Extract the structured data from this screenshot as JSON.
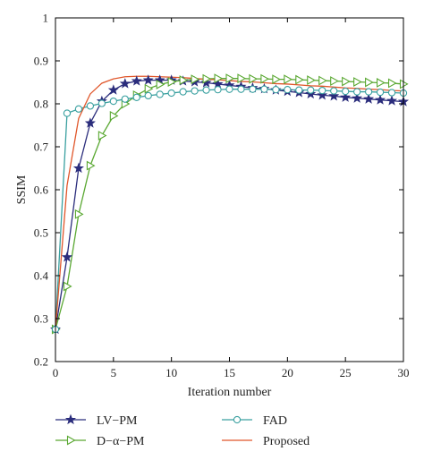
{
  "chart_data": {
    "type": "line",
    "title": "",
    "xlabel": "Iteration number",
    "ylabel": "SSIM",
    "xlim": [
      0,
      30
    ],
    "ylim": [
      0.2,
      1
    ],
    "xticks": [
      0,
      5,
      10,
      15,
      20,
      25,
      30
    ],
    "yticks": [
      0.2,
      0.3,
      0.4,
      0.5,
      0.6,
      0.7,
      0.8,
      0.9,
      1
    ],
    "xtick_labels": [
      "0",
      "5",
      "10",
      "15",
      "20",
      "25",
      "30"
    ],
    "ytick_labels": [
      "0.2",
      "0.3",
      "0.4",
      "0.5",
      "0.6",
      "0.7",
      "0.8",
      "0.9",
      "1"
    ],
    "grid": false,
    "legend_position": "below plot, two columns",
    "x": [
      0,
      1,
      2,
      3,
      4,
      5,
      6,
      7,
      8,
      9,
      10,
      11,
      12,
      13,
      14,
      15,
      16,
      17,
      18,
      19,
      20,
      21,
      22,
      23,
      24,
      25,
      26,
      27,
      28,
      29,
      30
    ],
    "series": [
      {
        "name": "LV−PM",
        "color": "#2b2d7c",
        "marker": "star",
        "values": [
          0.275,
          0.443,
          0.65,
          0.755,
          0.806,
          0.832,
          0.847,
          0.853,
          0.855,
          0.855,
          0.855,
          0.853,
          0.851,
          0.849,
          0.846,
          0.843,
          0.84,
          0.837,
          0.835,
          0.832,
          0.829,
          0.826,
          0.823,
          0.82,
          0.818,
          0.815,
          0.813,
          0.811,
          0.809,
          0.807,
          0.805
        ]
      },
      {
        "name": "D−α−PM",
        "color": "#5aa832",
        "marker": "triangle-right",
        "values": [
          0.275,
          0.375,
          0.543,
          0.656,
          0.726,
          0.772,
          0.8,
          0.82,
          0.835,
          0.845,
          0.851,
          0.855,
          0.857,
          0.858,
          0.859,
          0.859,
          0.859,
          0.858,
          0.858,
          0.857,
          0.857,
          0.856,
          0.855,
          0.854,
          0.853,
          0.852,
          0.851,
          0.85,
          0.849,
          0.848,
          0.846
        ]
      },
      {
        "name": "FAD",
        "color": "#3aa0a0",
        "marker": "circle",
        "values": [
          0.275,
          0.778,
          0.788,
          0.795,
          0.801,
          0.806,
          0.811,
          0.815,
          0.819,
          0.822,
          0.825,
          0.828,
          0.83,
          0.832,
          0.833,
          0.834,
          0.834,
          0.834,
          0.834,
          0.833,
          0.833,
          0.832,
          0.832,
          0.831,
          0.83,
          0.829,
          0.828,
          0.828,
          0.827,
          0.826,
          0.825
        ]
      },
      {
        "name": "Proposed",
        "color": "#e0562a",
        "marker": "none",
        "values": [
          0.275,
          0.61,
          0.766,
          0.823,
          0.848,
          0.858,
          0.863,
          0.864,
          0.864,
          0.863,
          0.862,
          0.861,
          0.859,
          0.857,
          0.856,
          0.854,
          0.852,
          0.851,
          0.849,
          0.847,
          0.846,
          0.844,
          0.842,
          0.841,
          0.839,
          0.837,
          0.836,
          0.834,
          0.833,
          0.831,
          0.83
        ]
      }
    ]
  }
}
